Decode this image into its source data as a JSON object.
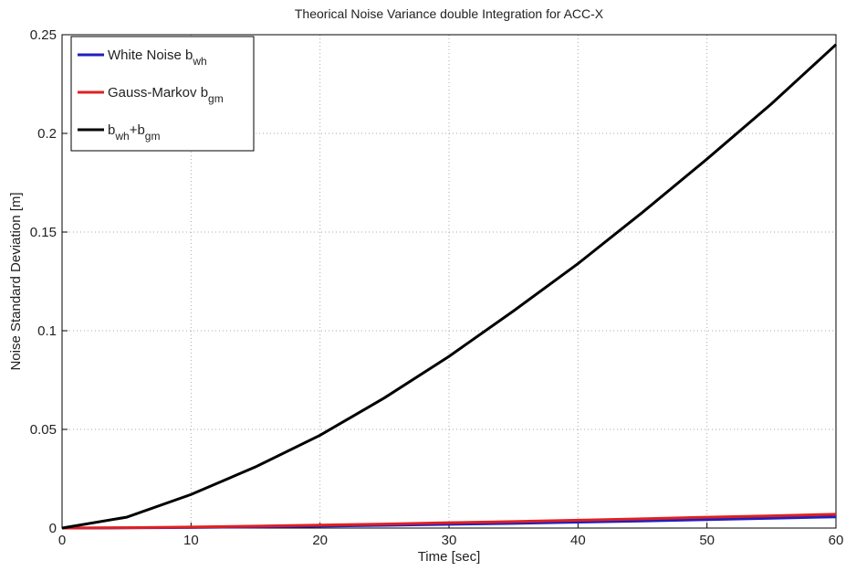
{
  "chart_data": {
    "type": "line",
    "title": "Theorical Noise Variance double Integration for ACC-X",
    "xlabel": "Time [sec]",
    "ylabel": "Noise Standard Deviation [m]",
    "x": [
      0,
      5,
      10,
      15,
      20,
      25,
      30,
      35,
      40,
      45,
      50,
      55,
      60
    ],
    "series": [
      {
        "label": [
          {
            "text": "White Noise b"
          },
          {
            "sub": "wh"
          }
        ],
        "color": "#1f1fbf",
        "values": [
          0,
          0.0001,
          0.0003,
          0.0006,
          0.001,
          0.0014,
          0.0019,
          0.0024,
          0.003,
          0.0036,
          0.0043,
          0.005,
          0.0057
        ]
      },
      {
        "label": [
          {
            "text": "Gauss-Markov b"
          },
          {
            "sub": "gm"
          }
        ],
        "color": "#e02020",
        "values": [
          0,
          0.0002,
          0.0005,
          0.001,
          0.0015,
          0.002,
          0.0027,
          0.0033,
          0.004,
          0.0047,
          0.0055,
          0.0062,
          0.007
        ]
      },
      {
        "label": [
          {
            "text": "b"
          },
          {
            "sub": "wh"
          },
          {
            "text": "+b"
          },
          {
            "sub": "gm"
          }
        ],
        "color": "#000000",
        "values": [
          0,
          0.0055,
          0.017,
          0.031,
          0.047,
          0.066,
          0.087,
          0.11,
          0.134,
          0.16,
          0.187,
          0.215,
          0.245
        ]
      }
    ],
    "xlim": [
      0,
      60
    ],
    "xticks": [
      0,
      10,
      20,
      30,
      40,
      50,
      60
    ],
    "ylim": [
      0,
      0.25
    ],
    "yticks": [
      0,
      0.05,
      0.1,
      0.15,
      0.2,
      0.25
    ],
    "grid": true,
    "legend": "upper left"
  }
}
